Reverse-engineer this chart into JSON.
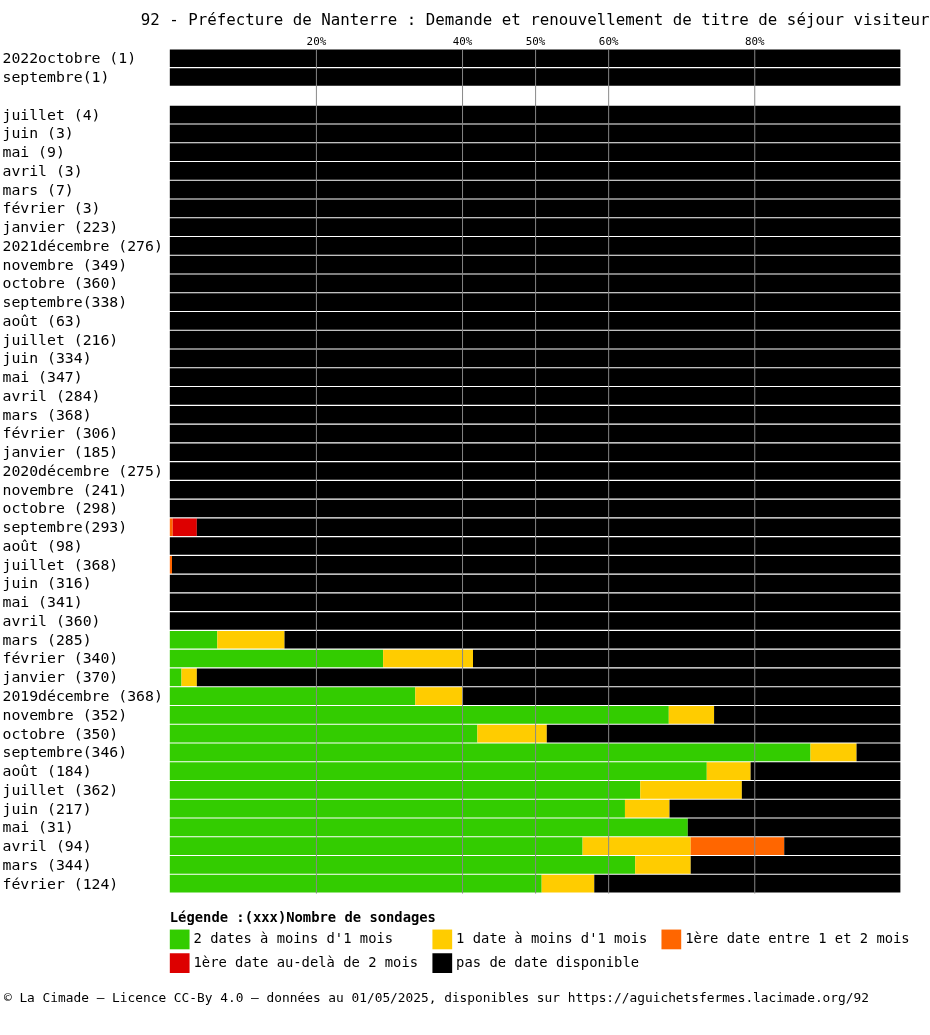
{
  "chart_data": {
    "type": "bar",
    "orientation": "horizontal",
    "stacked": true,
    "title": "92 - Préfecture de Nanterre : Demande et renouvellement de titre de séjour visiteur",
    "categories": [
      "2022octobre (1)",
      "septembre(1)",
      null,
      "juillet (4)",
      "juin (3)",
      "mai (9)",
      "avril (3)",
      "mars (7)",
      "février (3)",
      "janvier (223)",
      "2021décembre (276)",
      "novembre (349)",
      "octobre (360)",
      "septembre(338)",
      "août (63)",
      "juillet (216)",
      "juin (334)",
      "mai (347)",
      "avril (284)",
      "mars (368)",
      "février (306)",
      "janvier (185)",
      "2020décembre (275)",
      "novembre (241)",
      "octobre (298)",
      "septembre(293)",
      "août (98)",
      "juillet (368)",
      "juin (316)",
      "mai (341)",
      "avril (360)",
      "mars (285)",
      "février (340)",
      "janvier (370)",
      "2019décembre (368)",
      "novembre (352)",
      "octobre (350)",
      "septembre(346)",
      "août (184)",
      "juillet (362)",
      "juin (217)",
      "mai (31)",
      "avril (94)",
      "mars (344)",
      "février (124)"
    ],
    "series": [
      {
        "name": "2 dates à moins d'1 mois",
        "color": "#33cc00",
        "values": [
          null,
          null,
          null,
          null,
          null,
          null,
          null,
          null,
          null,
          null,
          null,
          null,
          null,
          null,
          null,
          null,
          null,
          null,
          null,
          null,
          null,
          null,
          null,
          null,
          null,
          null,
          null,
          null,
          null,
          null,
          null,
          6.5,
          29.2,
          1.6,
          33.6,
          68.3,
          42.1,
          87.7,
          73.5,
          64.4,
          62.3,
          70.9,
          56.5,
          63.7,
          50.9
        ]
      },
      {
        "name": "1 date à moins d'1 mois",
        "color": "#ffcc00",
        "values": [
          null,
          null,
          null,
          null,
          null,
          null,
          null,
          null,
          null,
          null,
          null,
          null,
          null,
          null,
          null,
          null,
          null,
          null,
          null,
          null,
          null,
          null,
          null,
          null,
          null,
          null,
          null,
          null,
          null,
          null,
          null,
          9.2,
          12.3,
          2.1,
          6.5,
          6.2,
          9.5,
          6.3,
          6.0,
          13.9,
          6.1,
          null,
          14.8,
          7.6,
          7.2
        ]
      },
      {
        "name": "1ère date entre 1 et 2 mois",
        "color": "#ff6600",
        "values": [
          null,
          null,
          null,
          null,
          null,
          null,
          null,
          null,
          null,
          null,
          null,
          null,
          null,
          null,
          null,
          null,
          null,
          null,
          null,
          null,
          null,
          null,
          null,
          null,
          null,
          0.4,
          null,
          0.3,
          null,
          null,
          null,
          null,
          null,
          null,
          null,
          null,
          null,
          null,
          null,
          null,
          null,
          null,
          12.8,
          null,
          null
        ]
      },
      {
        "name": "1ère date au-delà de 2 mois",
        "color": "#dd0000",
        "values": [
          null,
          null,
          null,
          null,
          null,
          null,
          null,
          null,
          null,
          null,
          null,
          null,
          null,
          null,
          null,
          null,
          null,
          null,
          null,
          null,
          null,
          null,
          null,
          null,
          null,
          3.3,
          null,
          null,
          null,
          null,
          null,
          null,
          null,
          null,
          null,
          null,
          null,
          null,
          null,
          null,
          null,
          null,
          null,
          null,
          null
        ]
      },
      {
        "name": "pas de date disponible",
        "color": "#000000",
        "values": [
          100,
          100,
          null,
          100,
          100,
          100,
          100,
          100,
          100,
          100,
          100,
          100,
          100,
          100,
          100,
          100,
          100,
          100,
          100,
          100,
          100,
          100,
          100,
          100,
          100,
          96.3,
          100,
          99.7,
          100,
          100,
          100,
          84.3,
          58.5,
          96.3,
          59.9,
          25.5,
          48.4,
          6.0,
          20.5,
          21.7,
          31.6,
          29.1,
          15.9,
          28.7,
          41.9
        ]
      }
    ],
    "xlim": [
      0,
      100
    ],
    "xticks": [
      {
        "value": 20,
        "label": "20%"
      },
      {
        "value": 40,
        "label": "40%"
      },
      {
        "value": 50,
        "label": "50%"
      },
      {
        "value": 60,
        "label": "60%"
      },
      {
        "value": 80,
        "label": "80%"
      }
    ],
    "grid": "x",
    "legend": "bottom",
    "legend_title": "Légende :(xxx)Nombre de sondages",
    "annotations": [
      "© La Cimade — Licence CC-By 4.0 — données au 01/05/2025, disponibles sur https://aguichetsfermes.lacimade.org/92"
    ]
  }
}
